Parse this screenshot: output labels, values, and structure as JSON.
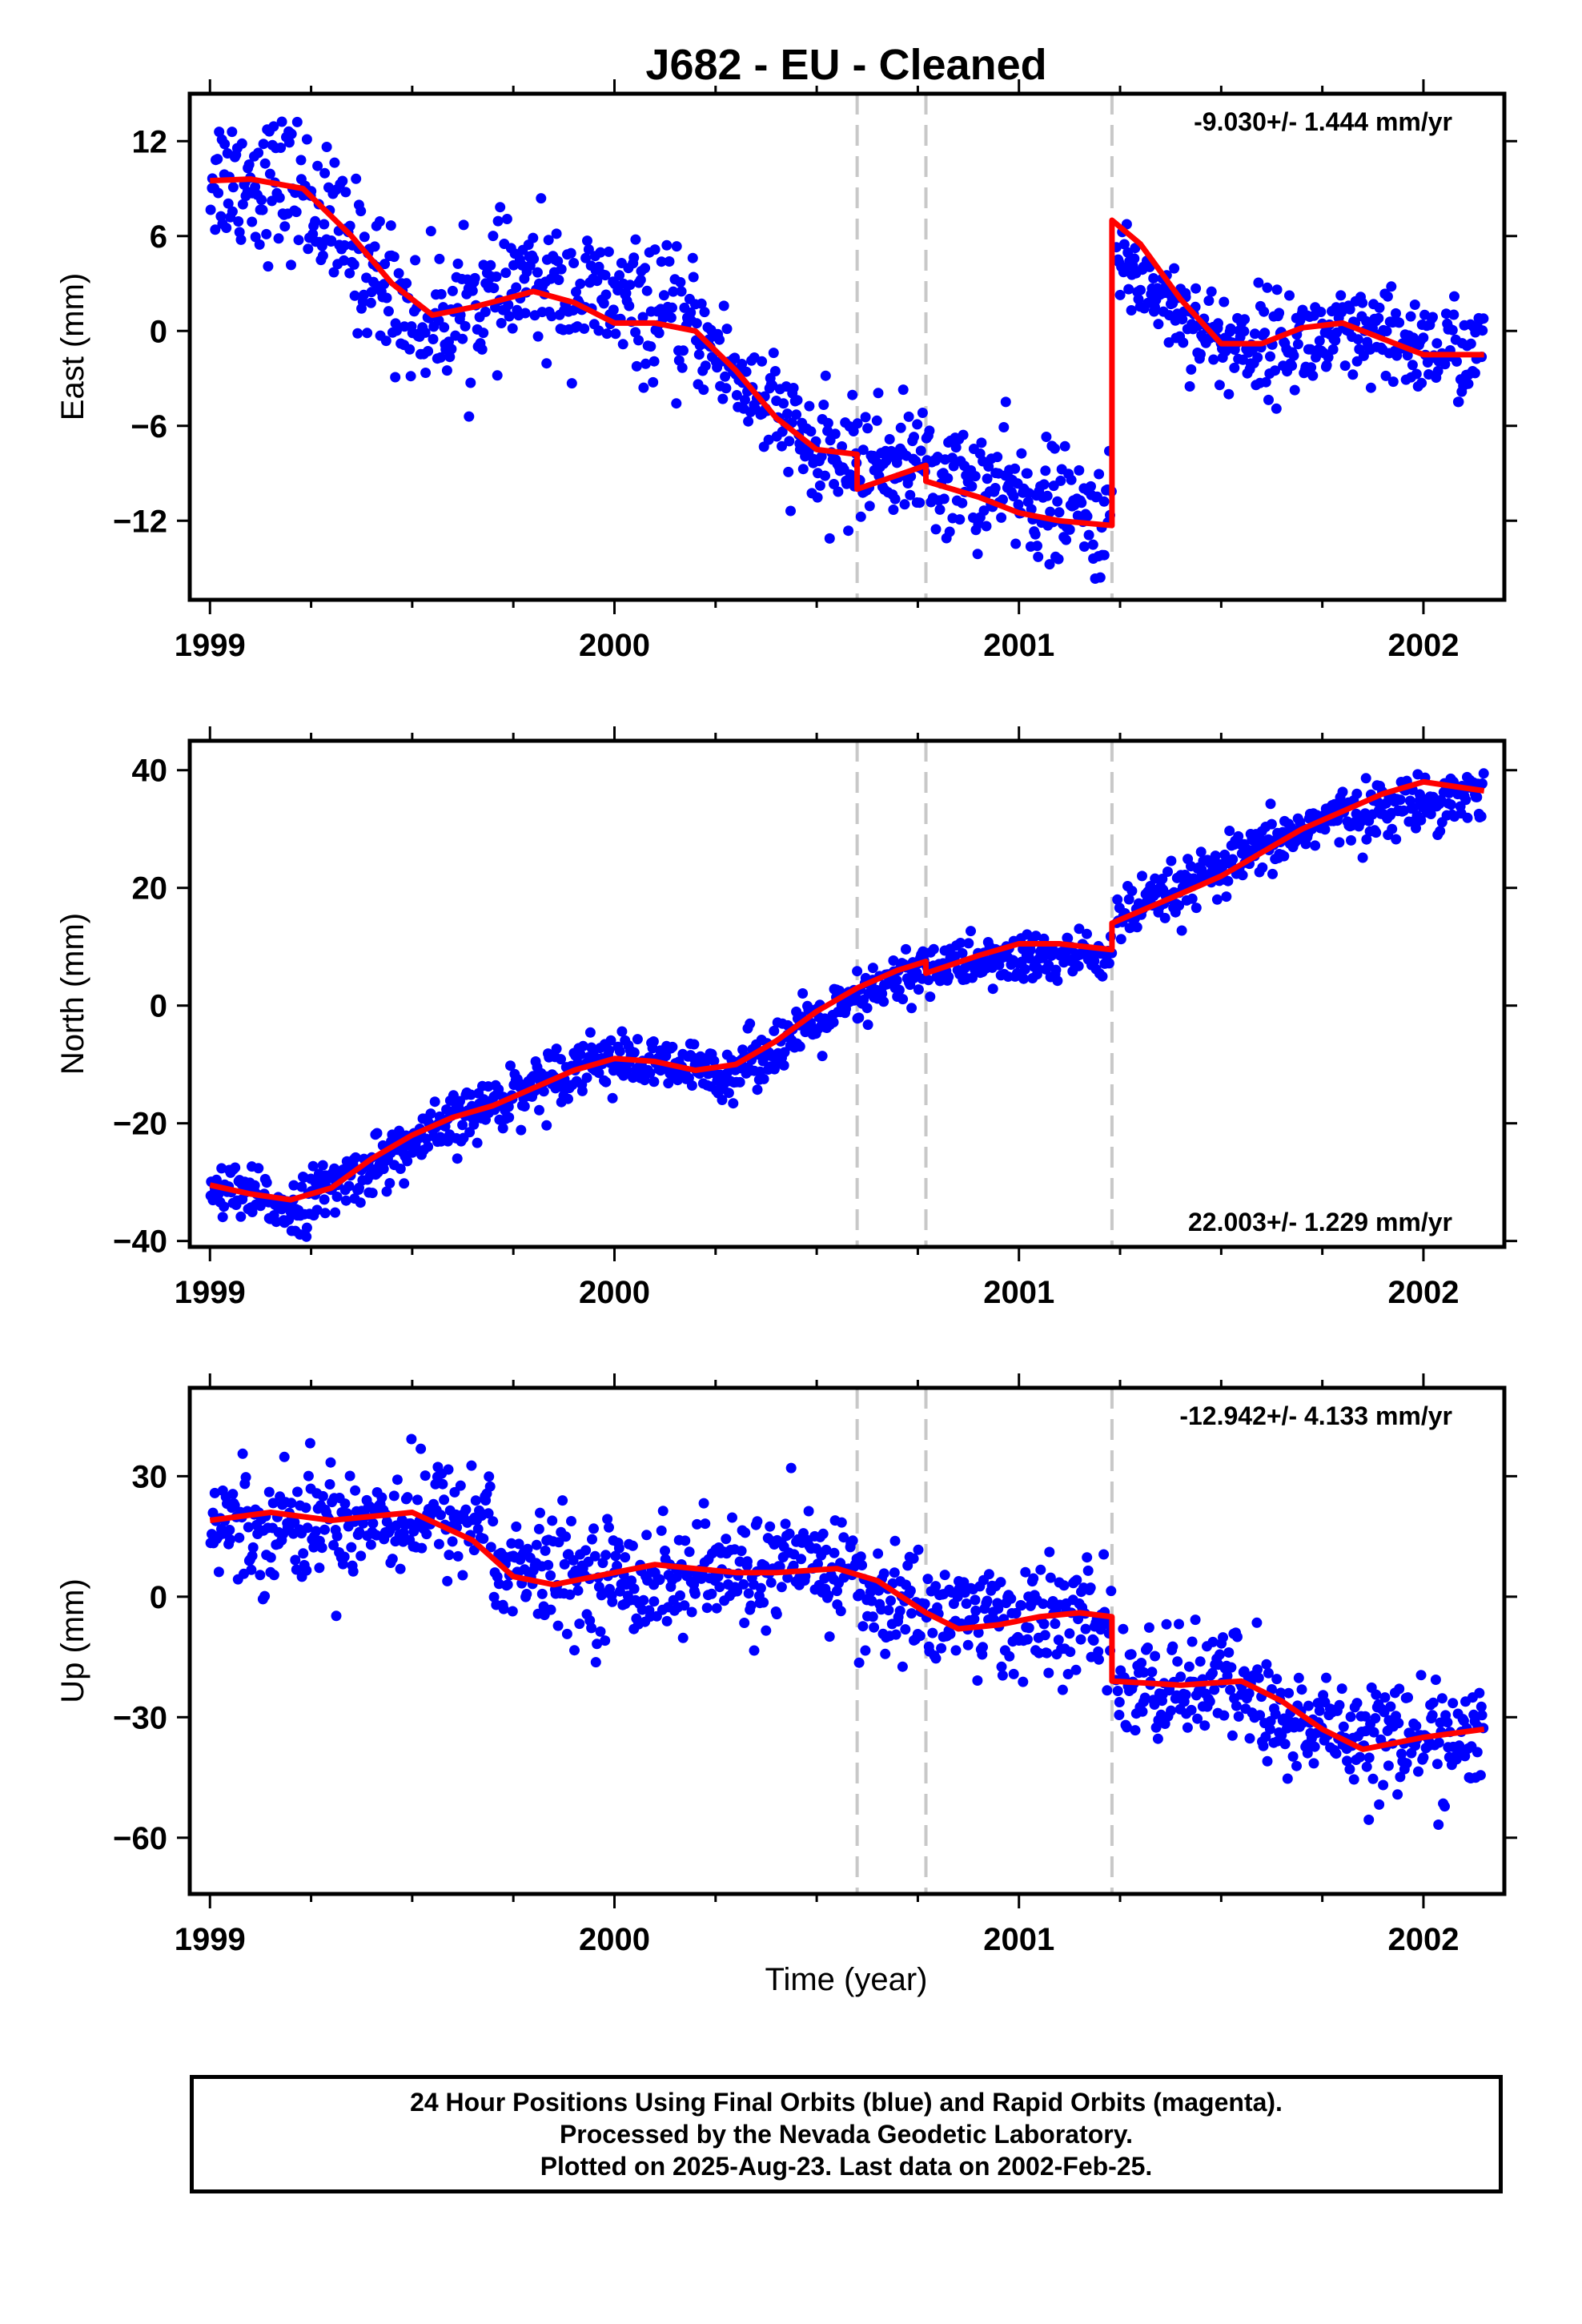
{
  "title": "J682  - EU - Cleaned",
  "x_axis_label": "Time (year)",
  "caption": {
    "line1": "24 Hour Positions Using Final Orbits (blue) and Rapid Orbits (magenta).",
    "line2": "Processed by the Nevada Geodetic Laboratory.",
    "line3": "Plotted on 2025-Aug-23. Last data on 2002-Feb-25."
  },
  "colors": {
    "points": "#0000ff",
    "fit": "#ff0000",
    "events": "#c8c8c8"
  },
  "chart_data": [
    {
      "type": "scatter",
      "ylabel": "East (mm)",
      "rate_text": "-9.030+/- 1.444 mm/yr",
      "rate_position": "top-right",
      "xlim": [
        1998.95,
        2002.2
      ],
      "ylim": [
        -17,
        15
      ],
      "x_ticks": [
        1999,
        2000,
        2001,
        2002
      ],
      "y_ticks": [
        -12,
        -6,
        0,
        6,
        12
      ],
      "event_lines": [
        2000.6,
        2000.77,
        2001.23
      ],
      "fit": {
        "x": [
          1999.0,
          1999.1,
          1999.23,
          1999.35,
          1999.45,
          1999.55,
          1999.65,
          1999.8,
          1999.9,
          2000.0,
          2000.1,
          2000.2,
          2000.3,
          2000.4,
          2000.5,
          2000.6,
          2000.6,
          2000.77,
          2000.77,
          2000.9,
          2001.0,
          2001.1,
          2001.23,
          2001.23,
          2001.3,
          2001.4,
          2001.5,
          2001.6,
          2001.7,
          2001.8,
          2001.9,
          2002.0,
          2002.15
        ],
        "y": [
          9.5,
          9.6,
          9.0,
          6.0,
          3.0,
          1.0,
          1.5,
          2.5,
          1.8,
          0.5,
          0.5,
          0.0,
          -2.5,
          -5.5,
          -7.5,
          -7.8,
          -10.0,
          -8.5,
          -9.5,
          -10.5,
          -11.5,
          -12.0,
          -12.3,
          7.0,
          5.5,
          2.0,
          -0.8,
          -0.8,
          0.2,
          0.5,
          -0.5,
          -1.5,
          -1.5
        ]
      },
      "points": {
        "segments": [
          {
            "x": [
              1999.0,
              1999.22
            ],
            "y": [
              9.5,
              9.3
            ],
            "sd": 2.2
          },
          {
            "x": [
              1999.22,
              1999.5
            ],
            "y": [
              9.3,
              1.5
            ],
            "sd": 2.2
          },
          {
            "x": [
              1999.5,
              1999.8
            ],
            "y": [
              0.5,
              2.8
            ],
            "sd": 2.0
          },
          {
            "x": [
              1999.8,
              2000.2
            ],
            "y": [
              2.5,
              0.3
            ],
            "sd": 2.0
          },
          {
            "x": [
              2000.2,
              2000.5
            ],
            "y": [
              0.3,
              -7.5
            ],
            "sd": 1.8
          },
          {
            "x": [
              2000.5,
              2000.77
            ],
            "y": [
              -8,
              -8.5
            ],
            "sd": 1.8
          },
          {
            "x": [
              2000.77,
              2001.23
            ],
            "y": [
              -9.5,
              -12
            ],
            "sd": 1.8
          },
          {
            "x": [
              2001.24,
              2001.5
            ],
            "y": [
              5,
              -0.5
            ],
            "sd": 1.5
          },
          {
            "x": [
              2001.5,
              2002.15
            ],
            "y": [
              -0.5,
              -1.5
            ],
            "sd": 1.6
          }
        ]
      }
    },
    {
      "type": "scatter",
      "ylabel": "North (mm)",
      "rate_text": "22.003+/- 1.229 mm/yr",
      "rate_position": "bottom-right",
      "xlim": [
        1998.95,
        2002.2
      ],
      "ylim": [
        -41,
        45
      ],
      "x_ticks": [
        1999,
        2000,
        2001,
        2002
      ],
      "y_ticks": [
        -40,
        -20,
        0,
        20,
        40
      ],
      "event_lines": [
        2000.6,
        2000.77,
        2001.23
      ],
      "fit": {
        "x": [
          1999.0,
          1999.1,
          1999.2,
          1999.3,
          1999.4,
          1999.5,
          1999.6,
          1999.7,
          1999.8,
          1999.9,
          2000.0,
          2000.1,
          2000.2,
          2000.3,
          2000.4,
          2000.5,
          2000.6,
          2000.7,
          2000.77,
          2000.77,
          2000.9,
          2001.0,
          2001.1,
          2001.23,
          2001.23,
          2001.4,
          2001.5,
          2001.6,
          2001.7,
          2001.8,
          2001.9,
          2002.0,
          2002.15
        ],
        "y": [
          -30.5,
          -32,
          -33,
          -31,
          -26,
          -22,
          -19,
          -17,
          -14,
          -11,
          -9,
          -9.5,
          -11,
          -10,
          -6,
          -1,
          3,
          6,
          7.5,
          5.5,
          8.5,
          10.5,
          10.5,
          9.5,
          14,
          19,
          22,
          26,
          30,
          33,
          36,
          38,
          36.5
        ]
      },
      "points": {
        "segments": [
          {
            "x": [
              1999.0,
              1999.22
            ],
            "y": [
              -31,
              -34
            ],
            "sd": 2.4
          },
          {
            "x": [
              1999.22,
              1999.95
            ],
            "y": [
              -33,
              -9
            ],
            "sd": 2.4
          },
          {
            "x": [
              1999.95,
              2000.3
            ],
            "y": [
              -9,
              -11
            ],
            "sd": 2.2
          },
          {
            "x": [
              2000.3,
              2000.77
            ],
            "y": [
              -10,
              6
            ],
            "sd": 2.4
          },
          {
            "x": [
              2000.77,
              2001.23
            ],
            "y": [
              6,
              9.5
            ],
            "sd": 2.2
          },
          {
            "x": [
              2001.24,
              2001.7
            ],
            "y": [
              15,
              29
            ],
            "sd": 2.3
          },
          {
            "x": [
              2001.7,
              2002.15
            ],
            "y": [
              30,
              37
            ],
            "sd": 2.3
          }
        ]
      }
    },
    {
      "type": "scatter",
      "ylabel": "Up (mm)",
      "rate_text": "-12.942+/- 4.133 mm/yr",
      "rate_position": "top-right",
      "xlim": [
        1998.95,
        2002.2
      ],
      "ylim": [
        -74,
        52
      ],
      "x_ticks": [
        1999,
        2000,
        2001,
        2002
      ],
      "y_ticks": [
        -60,
        -30,
        0,
        30
      ],
      "event_lines": [
        2000.6,
        2000.77,
        2001.23
      ],
      "fit": {
        "x": [
          1999.0,
          1999.15,
          1999.3,
          1999.5,
          1999.65,
          1999.75,
          1999.85,
          2000.0,
          2000.1,
          2000.2,
          2000.3,
          2000.4,
          2000.55,
          2000.65,
          2000.77,
          2000.85,
          2000.95,
          2001.05,
          2001.15,
          2001.23,
          2001.23,
          2001.4,
          2001.55,
          2001.65,
          2001.75,
          2001.85,
          2002.0,
          2002.15
        ],
        "y": [
          19,
          21,
          19,
          21,
          14,
          5,
          3,
          6,
          8,
          7,
          6,
          6,
          7,
          4,
          -4,
          -8,
          -7,
          -5,
          -4,
          -5,
          -21,
          -22,
          -21,
          -26,
          -33,
          -38,
          -35,
          -33
        ]
      },
      "points": {
        "segments": [
          {
            "x": [
              1999.0,
              1999.7
            ],
            "y": [
              20,
              18
            ],
            "sd": 7
          },
          {
            "x": [
              1999.7,
              2000.6
            ],
            "y": [
              6,
              6
            ],
            "sd": 7
          },
          {
            "x": [
              2000.6,
              2001.23
            ],
            "y": [
              -3,
              -5
            ],
            "sd": 7
          },
          {
            "x": [
              2001.24,
              2001.6
            ],
            "y": [
              -22,
              -24
            ],
            "sd": 7
          },
          {
            "x": [
              2001.6,
              2002.15
            ],
            "y": [
              -33,
              -34
            ],
            "sd": 7
          }
        ]
      }
    }
  ]
}
